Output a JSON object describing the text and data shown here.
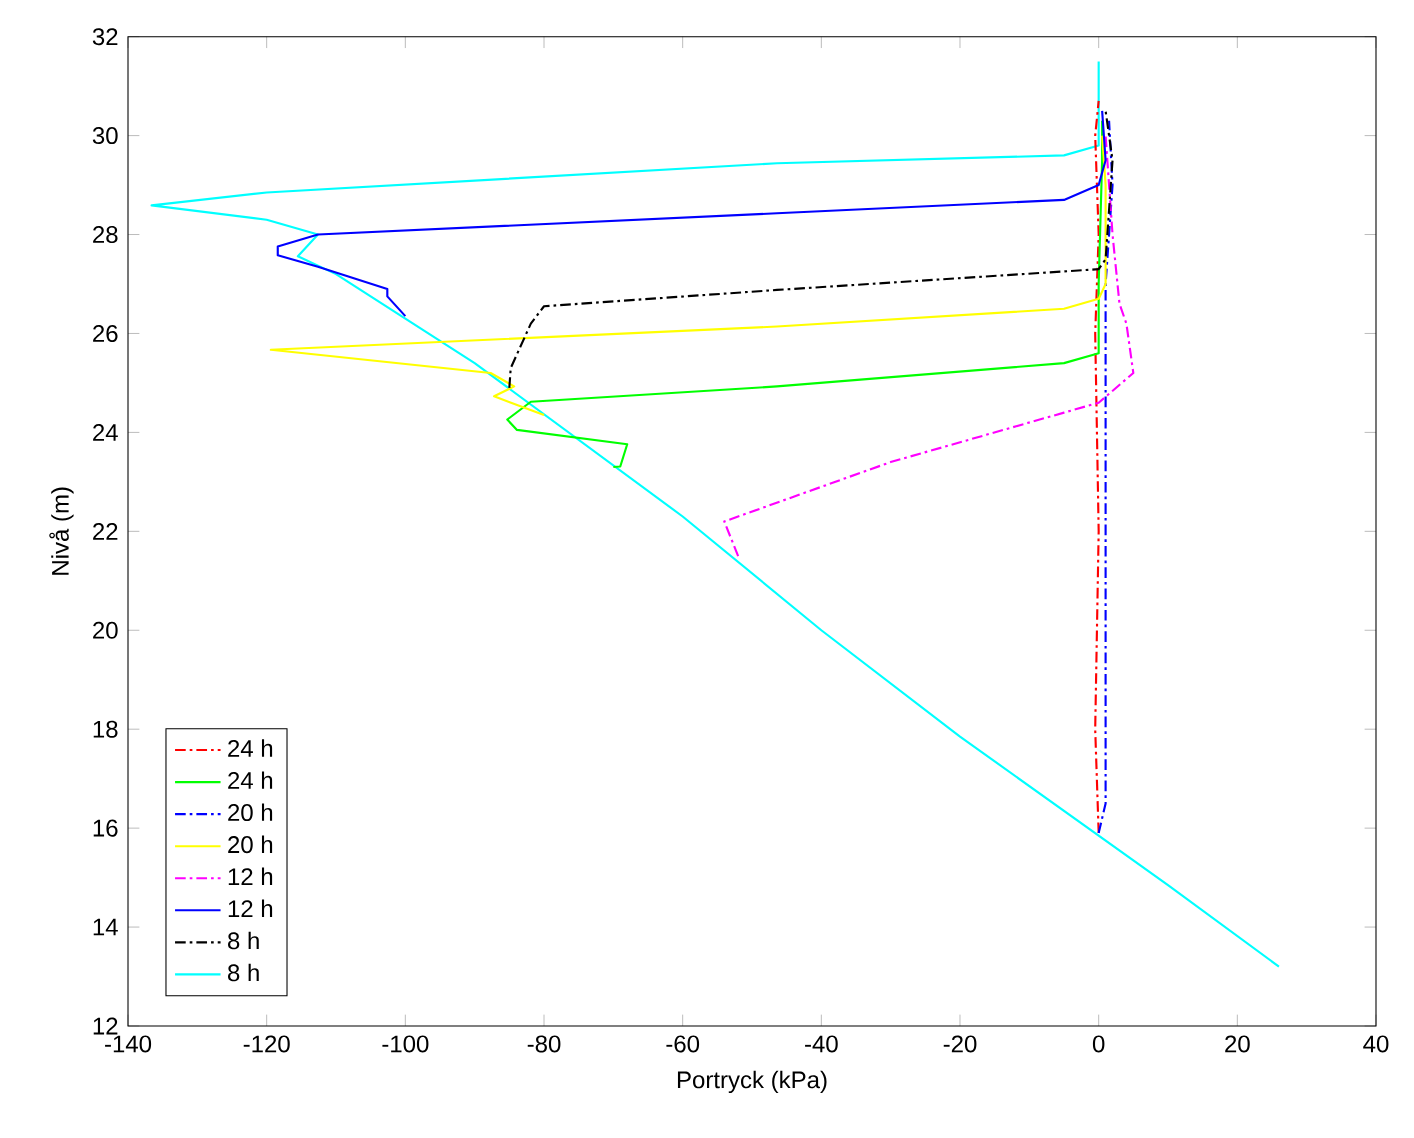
{
  "chart_data": {
    "type": "line",
    "xlabel": "Portryck (kPa)",
    "ylabel": "Nivå (m)",
    "xlim": [
      -140,
      40
    ],
    "ylim": [
      12,
      32
    ],
    "xticks": [
      -140,
      -120,
      -100,
      -80,
      -60,
      -40,
      -20,
      0,
      20,
      40
    ],
    "yticks": [
      12,
      14,
      16,
      18,
      20,
      22,
      24,
      26,
      28,
      30,
      32
    ],
    "grid": false,
    "legend": "bottom left",
    "marker": "none",
    "series": [
      {
        "name": "24 h",
        "color": "#ff0000",
        "line_style": "dashed",
        "x": [
          0,
          -0.5,
          0,
          -0.5,
          0,
          -0.5,
          0
        ],
        "values": [
          15.9,
          18,
          22,
          26,
          28,
          30,
          30.7
        ]
      },
      {
        "name": "24 h",
        "color": "#00ff00",
        "line_style": "solid",
        "x": [
          -70,
          -69,
          -68,
          -83.9,
          -85.3,
          -81.9,
          -46.4,
          -5,
          0,
          0,
          0.5,
          0.5
        ],
        "values": [
          23.3,
          23.31,
          23.76,
          24.05,
          24.26,
          24.62,
          24.93,
          25.4,
          25.6,
          27,
          29.5,
          30.3
        ]
      },
      {
        "name": "20 h",
        "color": "#0000ff",
        "line_style": "dashed",
        "x": [
          0,
          1,
          1,
          1,
          1,
          2,
          1.5
        ],
        "values": [
          15.9,
          16.5,
          20,
          24,
          27,
          29,
          30.3
        ]
      },
      {
        "name": "20 h",
        "color": "#ffff00",
        "line_style": "solid",
        "x": [
          -80,
          -87.2,
          -84.3,
          -87.7,
          -119.4,
          -46.4,
          -5,
          0,
          1,
          1,
          0.5
        ],
        "values": [
          24.35,
          24.73,
          24.93,
          25.2,
          25.67,
          26.14,
          26.5,
          26.7,
          27,
          29,
          30
        ]
      },
      {
        "name": "12 h",
        "color": "#ff00ff",
        "line_style": "dashed",
        "x": [
          -52,
          -54,
          -30,
          -5,
          0,
          5,
          4,
          3,
          2,
          1
        ],
        "values": [
          21.5,
          22.2,
          23.4,
          24.4,
          24.6,
          25.2,
          26.2,
          26.6,
          28,
          30
        ]
      },
      {
        "name": "12 h",
        "color": "#0000ff",
        "line_style": "solid",
        "x": [
          -100,
          -102.6,
          -102.6,
          -112.6,
          -118.4,
          -118.4,
          -112.6,
          -46.4,
          -5,
          0,
          1,
          0.5
        ],
        "values": [
          26.35,
          26.75,
          26.9,
          27.35,
          27.58,
          27.76,
          28,
          28.43,
          28.7,
          29,
          29.5,
          30.5
        ]
      },
      {
        "name": "8 h",
        "color": "#000000",
        "line_style": "dashed",
        "x": [
          -85,
          -84.8,
          -81.9,
          -80,
          -46.4,
          0,
          1,
          2,
          1
        ],
        "values": [
          24.9,
          25.3,
          26.2,
          26.55,
          26.88,
          27.3,
          27.5,
          29.5,
          30.5
        ]
      },
      {
        "name": "8 h",
        "color": "#00ffff",
        "line_style": "solid",
        "x": [
          26,
          10,
          -20,
          -40,
          -60,
          -90,
          -110,
          -115.5,
          -112.6,
          -120,
          -136.6,
          -120,
          -46.4,
          -5,
          0,
          0
        ],
        "values": [
          13.2,
          14.85,
          17.85,
          20,
          22.3,
          25.4,
          27.2,
          27.56,
          28,
          28.3,
          28.59,
          28.85,
          29.44,
          29.6,
          29.8,
          31.5
        ]
      }
    ]
  }
}
